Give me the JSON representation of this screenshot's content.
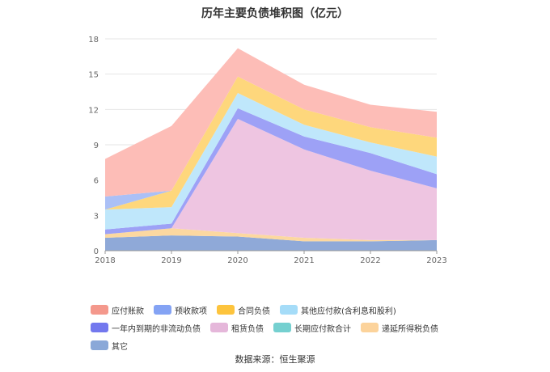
{
  "chart_data": {
    "type": "area",
    "stacked": true,
    "title": "历年主要负债堆积图（亿元）",
    "categories": [
      "2018",
      "2019",
      "2020",
      "2021",
      "2022",
      "2023"
    ],
    "ylim": [
      0,
      18
    ],
    "yticks": [
      0,
      3,
      6,
      9,
      12,
      15,
      18
    ],
    "grid": true,
    "legend_position": "bottom",
    "series": [
      {
        "name": "其它",
        "color": "#8fa9d8",
        "values": [
          1.1,
          1.3,
          1.2,
          0.8,
          0.8,
          0.9
        ]
      },
      {
        "name": "递延所得税负债",
        "color": "#fcd8a0",
        "values": [
          0.3,
          0.6,
          0.3,
          0.3,
          0.1,
          0.0
        ]
      },
      {
        "name": "长期应付款合计",
        "color": "#7fd4d4",
        "values": [
          0.0,
          0.0,
          0.0,
          0.0,
          0.0,
          0.0
        ]
      },
      {
        "name": "租赁负债",
        "color": "#eec5e1",
        "values": [
          0.0,
          0.0,
          9.7,
          7.5,
          5.9,
          4.4
        ]
      },
      {
        "name": "一年内到期的非流动负债",
        "color": "#9da1f6",
        "values": [
          0.4,
          0.4,
          0.9,
          1.1,
          1.5,
          1.2
        ]
      },
      {
        "name": "其他应付款(含利息和股利)",
        "color": "#bfe7fb",
        "values": [
          1.7,
          1.4,
          1.3,
          1.0,
          0.9,
          1.5
        ]
      },
      {
        "name": "合同负债",
        "color": "#fed77c",
        "values": [
          0.0,
          1.4,
          1.4,
          1.3,
          1.3,
          1.6
        ]
      },
      {
        "name": "预收款项",
        "color": "#abc0f6",
        "values": [
          1.1,
          0.0,
          0.0,
          0.0,
          0.0,
          0.0
        ]
      },
      {
        "name": "应付账款",
        "color": "#fdbdb7",
        "values": [
          3.2,
          5.5,
          2.4,
          2.1,
          1.9,
          2.2
        ]
      }
    ],
    "legend_order": [
      "应付账款",
      "预收款项",
      "合同负债",
      "其他应付款(含利息和股利)",
      "一年内到期的非流动负债",
      "租赁负债",
      "长期应付款合计",
      "递延所得税负债",
      "其它"
    ],
    "legend_colors": [
      "#f4988c",
      "#84a3f4",
      "#fdc43d",
      "#a5dcf8",
      "#7378ee",
      "#e5b7da",
      "#75d0d0",
      "#fcd39b",
      "#8aa8d8"
    ]
  },
  "source": "数据来源：恒生聚源"
}
